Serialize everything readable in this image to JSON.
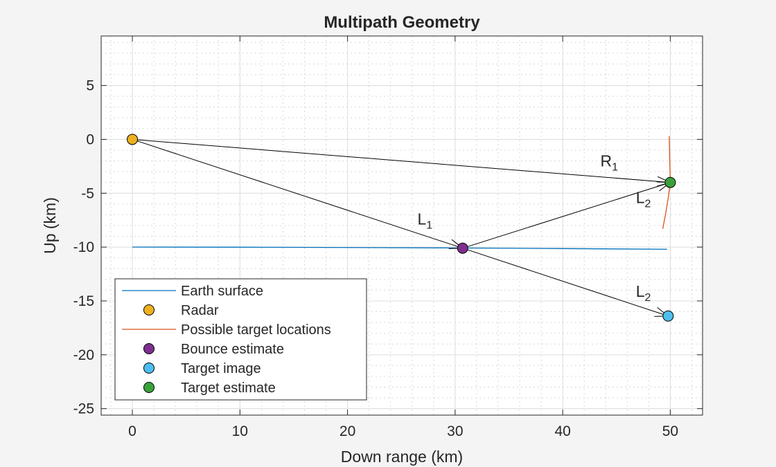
{
  "chart_data": {
    "type": "line",
    "title": "Multipath Geometry",
    "xlabel": "Down range (km)",
    "ylabel": "Up (km)",
    "xlim": [
      -2.9,
      53
    ],
    "ylim": [
      -25.6,
      9.6
    ],
    "xticks": [
      0,
      10,
      20,
      30,
      40,
      50
    ],
    "yticks": [
      5,
      0,
      -5,
      -10,
      -15,
      -20,
      -25
    ],
    "grid": true,
    "minor_grid": true,
    "legend_position": "bottom-left",
    "series": [
      {
        "name": "Earth surface",
        "kind": "line",
        "color": "#0072bd",
        "x": [
          0,
          10,
          20,
          30,
          40,
          49.7
        ],
        "y": [
          -10,
          -10.01,
          -10.04,
          -10.08,
          -10.14,
          -10.2
        ]
      },
      {
        "name": "Radar",
        "kind": "marker",
        "color": "#edb120",
        "x": [
          0
        ],
        "y": [
          0
        ]
      },
      {
        "name": "Possible target locations",
        "kind": "line",
        "color": "#d95319",
        "x": [
          49.9,
          49.95,
          50,
          49.8,
          49.55,
          49.3
        ],
        "y": [
          0.3,
          -2,
          -4,
          -5.5,
          -7,
          -8.3
        ]
      },
      {
        "name": "Bounce estimate",
        "kind": "marker",
        "color": "#7e2f8e",
        "x": [
          30.7
        ],
        "y": [
          -10.1
        ]
      },
      {
        "name": "Target image",
        "kind": "marker",
        "color": "#4dbeee",
        "x": [
          49.8
        ],
        "y": [
          -16.4
        ]
      },
      {
        "name": "Target estimate",
        "kind": "marker",
        "color": "#3aa13a",
        "x": [
          50
        ],
        "y": [
          -4
        ]
      }
    ],
    "annotations": [
      {
        "from": [
          0,
          0
        ],
        "to": [
          50,
          -4
        ],
        "label": "R",
        "sub": "1",
        "at": [
          43.5,
          -2.5
        ]
      },
      {
        "from": [
          0,
          0
        ],
        "to": [
          30.7,
          -10.1
        ],
        "label": "L",
        "sub": "1",
        "at": [
          26.5,
          -7.9
        ]
      },
      {
        "from": [
          30.7,
          -10.1
        ],
        "to": [
          50,
          -4
        ],
        "label": "L",
        "sub": "2",
        "at": [
          46.8,
          -5.9
        ]
      },
      {
        "from": [
          30.7,
          -10.1
        ],
        "to": [
          49.8,
          -16.4
        ],
        "label": "L",
        "sub": "2",
        "at": [
          46.8,
          -14.6
        ]
      }
    ]
  }
}
